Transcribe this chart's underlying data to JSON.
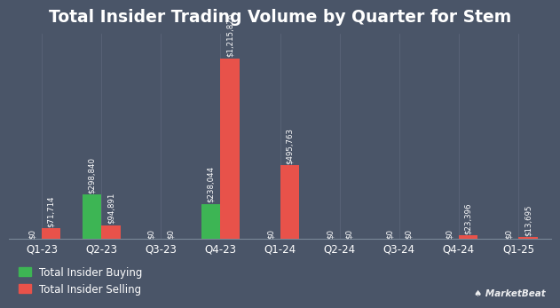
{
  "title": "Total Insider Trading Volume by Quarter for Stem",
  "categories": [
    "Q1-23",
    "Q2-23",
    "Q3-23",
    "Q4-23",
    "Q1-24",
    "Q2-24",
    "Q3-24",
    "Q4-24",
    "Q1-25"
  ],
  "buying": [
    0,
    298840,
    0,
    238044,
    0,
    0,
    0,
    0,
    0
  ],
  "selling": [
    71714,
    94891,
    0,
    1215826,
    495763,
    0,
    0,
    23396,
    13695
  ],
  "buying_labels": [
    "$0",
    "$298,840",
    "$0",
    "$238,044",
    "$0",
    "$0",
    "$0",
    "$0",
    "$0"
  ],
  "selling_labels": [
    "$71,714",
    "$94,891",
    "$0",
    "$1,215,826",
    "$495,763",
    "$0",
    "$0",
    "$23,396",
    "$13,695"
  ],
  "buy_color": "#3db554",
  "sell_color": "#e8524a",
  "background_color": "#4a5568",
  "text_color": "#ffffff",
  "legend_buy": "Total Insider Buying",
  "legend_sell": "Total Insider Selling",
  "bar_width": 0.32,
  "ylim": [
    0,
    1380000
  ],
  "title_fontsize": 13.5,
  "label_fontsize": 6.2,
  "tick_fontsize": 8.5,
  "legend_fontsize": 8.5,
  "grid_color": "#5a6478",
  "spine_color": "#7a8898"
}
